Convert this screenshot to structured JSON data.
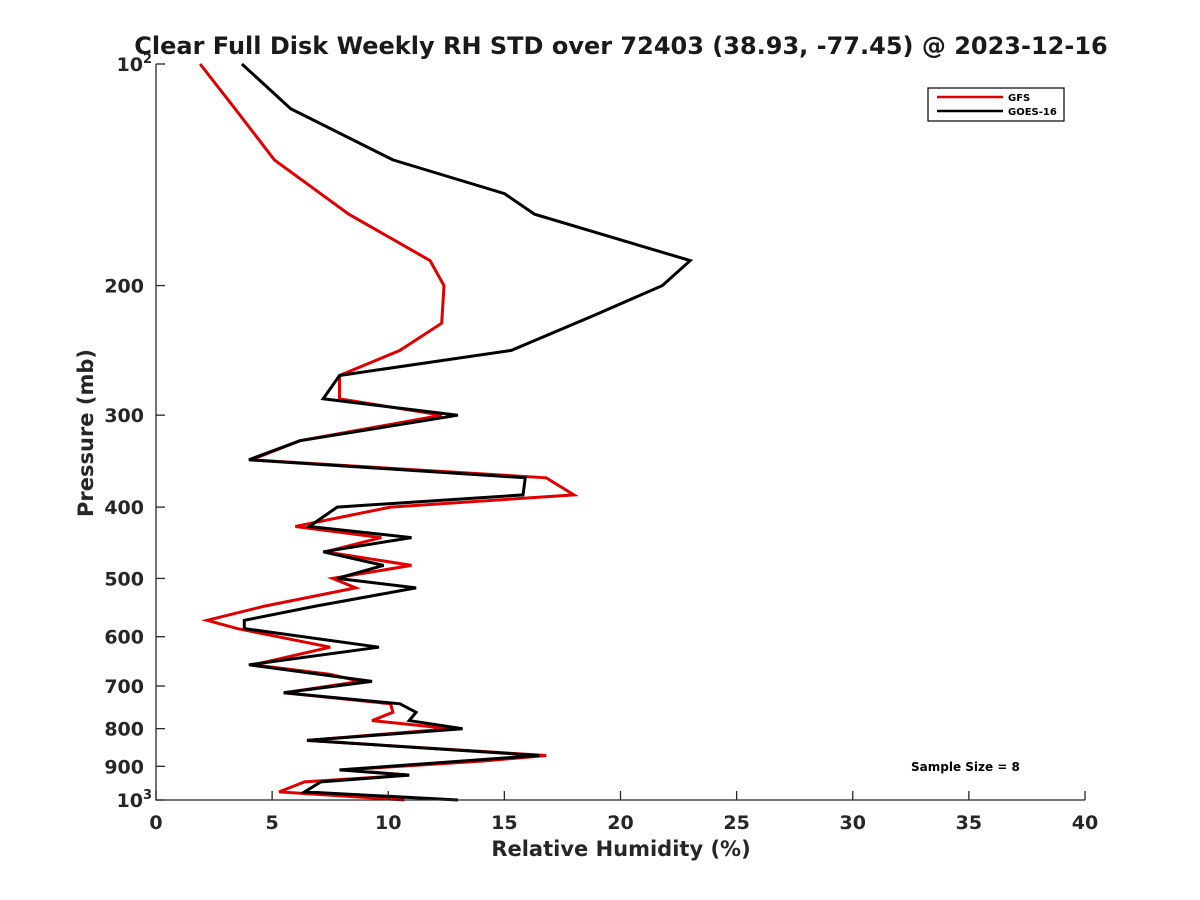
{
  "chart_data": {
    "type": "line",
    "title": "Clear Full Disk Weekly RH STD over 72403 (38.93, -77.45) @ 2023-12-16",
    "xlabel": "Relative Humidity (%)",
    "ylabel": "Pressure (mb)",
    "xlim": [
      0,
      40
    ],
    "ylim": [
      100,
      1000
    ],
    "y_scale": "log",
    "y_reversed": true,
    "grid": false,
    "legend_position": "top-right",
    "x_ticks": [
      "0",
      "5",
      "10",
      "15",
      "20",
      "25",
      "30",
      "35",
      "40"
    ],
    "x_tick_values": [
      0,
      5,
      10,
      15,
      20,
      25,
      30,
      35,
      40
    ],
    "y_ticks": [
      {
        "value": 100,
        "label": "10",
        "sup": "2"
      },
      {
        "value": 200,
        "label": "200",
        "sup": ""
      },
      {
        "value": 300,
        "label": "300",
        "sup": ""
      },
      {
        "value": 400,
        "label": "400",
        "sup": ""
      },
      {
        "value": 500,
        "label": "500",
        "sup": ""
      },
      {
        "value": 600,
        "label": "600",
        "sup": ""
      },
      {
        "value": 700,
        "label": "700",
        "sup": ""
      },
      {
        "value": 800,
        "label": "800",
        "sup": ""
      },
      {
        "value": 900,
        "label": "900",
        "sup": ""
      },
      {
        "value": 1000,
        "label": "10",
        "sup": "3"
      }
    ],
    "series": [
      {
        "name": "GFS",
        "color": "#e00000",
        "points": [
          [
            1.9,
            100
          ],
          [
            3.4,
            115
          ],
          [
            5.1,
            135
          ],
          [
            8.3,
            160
          ],
          [
            11.8,
            185
          ],
          [
            12.4,
            200
          ],
          [
            12.3,
            225
          ],
          [
            10.5,
            245
          ],
          [
            7.9,
            265
          ],
          [
            7.9,
            285
          ],
          [
            12.3,
            300
          ],
          [
            6.2,
            325
          ],
          [
            4.1,
            345
          ],
          [
            16.8,
            365
          ],
          [
            18.0,
            385
          ],
          [
            10.1,
            400
          ],
          [
            6.0,
            425
          ],
          [
            9.7,
            440
          ],
          [
            7.3,
            460
          ],
          [
            11.0,
            480
          ],
          [
            7.6,
            500
          ],
          [
            8.6,
            515
          ],
          [
            4.7,
            545
          ],
          [
            2.2,
            570
          ],
          [
            3.5,
            585
          ],
          [
            7.5,
            620
          ],
          [
            4.2,
            655
          ],
          [
            7.5,
            675
          ],
          [
            8.8,
            690
          ],
          [
            5.5,
            715
          ],
          [
            10.1,
            740
          ],
          [
            10.2,
            760
          ],
          [
            9.3,
            780
          ],
          [
            12.7,
            800
          ],
          [
            6.5,
            830
          ],
          [
            16.8,
            870
          ],
          [
            14.1,
            885
          ],
          [
            8.1,
            910
          ],
          [
            10.9,
            925
          ],
          [
            6.4,
            945
          ],
          [
            5.3,
            975
          ],
          [
            10.7,
            1000
          ]
        ]
      },
      {
        "name": "GOES-16",
        "color": "#000000",
        "points": [
          [
            3.7,
            100
          ],
          [
            5.8,
            115
          ],
          [
            10.2,
            135
          ],
          [
            15.0,
            150
          ],
          [
            16.3,
            160
          ],
          [
            23.0,
            185
          ],
          [
            21.8,
            200
          ],
          [
            18.8,
            220
          ],
          [
            15.3,
            245
          ],
          [
            7.9,
            265
          ],
          [
            7.2,
            285
          ],
          [
            13.0,
            300
          ],
          [
            6.2,
            325
          ],
          [
            4.0,
            345
          ],
          [
            15.9,
            365
          ],
          [
            15.8,
            385
          ],
          [
            7.8,
            400
          ],
          [
            6.6,
            425
          ],
          [
            11.0,
            440
          ],
          [
            7.2,
            460
          ],
          [
            9.8,
            480
          ],
          [
            7.8,
            500
          ],
          [
            11.2,
            515
          ],
          [
            6.9,
            545
          ],
          [
            3.8,
            570
          ],
          [
            3.8,
            585
          ],
          [
            9.6,
            620
          ],
          [
            4.0,
            655
          ],
          [
            9.3,
            690
          ],
          [
            5.5,
            715
          ],
          [
            10.5,
            740
          ],
          [
            11.2,
            760
          ],
          [
            10.9,
            780
          ],
          [
            13.2,
            800
          ],
          [
            6.5,
            830
          ],
          [
            16.5,
            870
          ],
          [
            7.9,
            910
          ],
          [
            10.9,
            925
          ],
          [
            7.1,
            945
          ],
          [
            6.4,
            975
          ],
          [
            13.0,
            1000
          ]
        ]
      }
    ],
    "annotation": "Sample Size = 8"
  }
}
